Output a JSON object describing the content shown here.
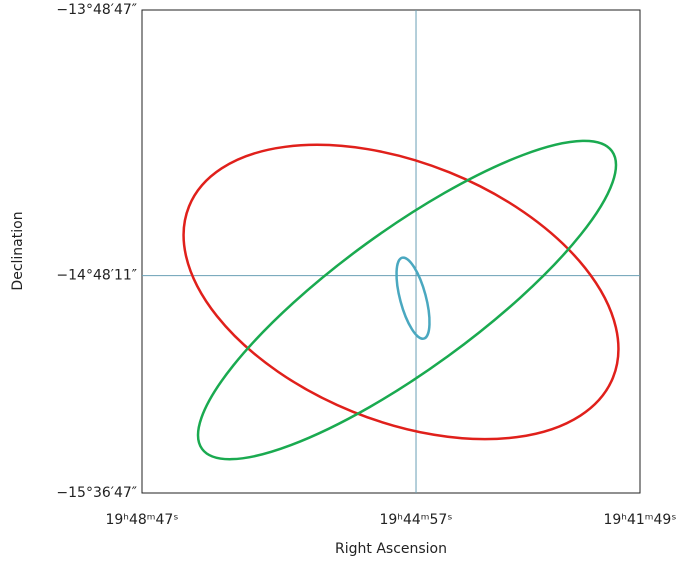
{
  "chart_data": {
    "type": "ellipse",
    "x_label": "Right Ascension",
    "y_label": "Declination",
    "xlim": [
      297.196,
      295.454
    ],
    "ylim": [
      -15.6131,
      -13.8131
    ],
    "xticks": [
      {
        "value": 297.196,
        "label": "19ʰ48ᵐ47ˢ"
      },
      {
        "value": 296.2375,
        "label": "19ʰ44ᵐ57ˢ"
      },
      {
        "value": 295.454,
        "label": "19ʰ41ᵐ49ˢ"
      }
    ],
    "yticks": [
      {
        "value": -15.6131,
        "label": "−15°36′47″"
      },
      {
        "value": -14.8031,
        "label": "−14°48′11″"
      },
      {
        "value": -13.8131,
        "label": "−13°48′47″"
      }
    ],
    "crosshair": true,
    "series": [
      {
        "color": "#e0201b",
        "x": 296.29,
        "y": -14.864,
        "a": 0.852,
        "b": 0.481,
        "angle": 22
      },
      {
        "color": "#1aaa50",
        "x": 296.269,
        "y": -14.894,
        "a": 0.944,
        "b": 0.259,
        "angle": -36
      },
      {
        "color": "#4aa8c0",
        "x": 296.248,
        "y": -14.887,
        "a": 0.156,
        "b": 0.048,
        "angle": 75
      }
    ]
  }
}
